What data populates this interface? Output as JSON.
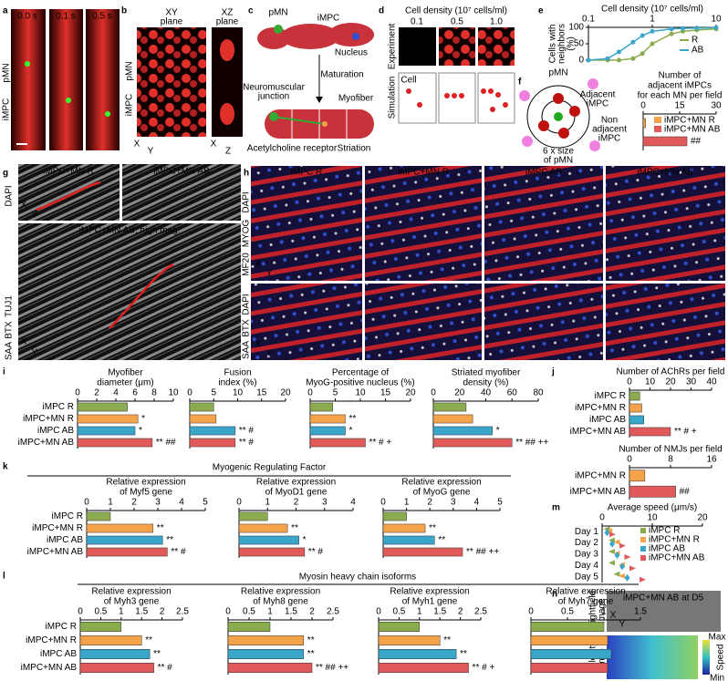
{
  "panels": {
    "letters": [
      "a",
      "b",
      "c",
      "d",
      "e",
      "f",
      "g",
      "h",
      "i",
      "j",
      "k",
      "l",
      "m",
      "n"
    ],
    "a": {
      "times": [
        "0.0 s",
        "0.1 s",
        "0.5 s"
      ],
      "stain": [
        "iMPC",
        "pMN"
      ]
    },
    "b": {
      "views": [
        [
          "XY",
          "plane"
        ],
        [
          "XZ",
          "plane"
        ]
      ],
      "stain": [
        "iMPC",
        "pMN"
      ],
      "axes": [
        "X",
        "Y",
        "X",
        "Z"
      ]
    },
    "c": {
      "labels": [
        "pMN",
        "iMPC",
        "Nucleus",
        "Maturation",
        "Neuromuscular",
        "junction",
        "Myofiber",
        "Acetylcholine receptor",
        "Striation"
      ]
    },
    "d": {
      "title": "Cell density (10⁷ cells/ml)",
      "densities": [
        "0.1",
        "0.5",
        "1.0"
      ],
      "rows": [
        "Experiment",
        "Simulation"
      ],
      "cell": [
        "Cell",
        "Cell"
      ]
    },
    "f": {
      "labels": [
        "pMN",
        "Adjacent",
        "iMPC",
        "Non",
        "adjacent",
        "iMPC",
        "6 x size",
        "of pMN"
      ]
    },
    "g": {
      "titles": [
        "iMPC+MN R",
        "iMPC+MN AB",
        "iMPC+MN AB, high mag."
      ],
      "stain": [
        "SAA",
        "BTX",
        "TUJ1",
        "DAPI"
      ],
      "axes": [
        "X",
        "Y",
        "X",
        "Y"
      ]
    },
    "h": {
      "titles": [
        "iMPC R",
        "iMPC+MN R",
        "iMPC AB",
        "iMPC+MN AB"
      ],
      "stain_top": [
        "MF20",
        "MYOG",
        "DAPI"
      ],
      "stain_bottom": [
        "SAA",
        "BTX",
        "DAPI"
      ],
      "axes": [
        "X",
        "Y",
        "X",
        "Y"
      ]
    },
    "n": {
      "title": "iMPC+MN AB at D5",
      "labels": [
        "Brightfield",
        "image",
        "Velocity",
        "map"
      ],
      "scale": [
        "Max",
        "Speed",
        "Min"
      ],
      "axes": [
        "X",
        "Y"
      ]
    }
  },
  "groups": [
    "Myogenic Regulating Factor",
    "Myosin heavy chain isoforms"
  ],
  "chart_data": [
    {
      "type": "line",
      "title": [
        "Cell density (10⁷ cells/ml)"
      ],
      "ylabel": [
        "Cells with",
        "neighbors",
        "(%)"
      ],
      "xscale": "log",
      "x": [
        0.1,
        0.2,
        0.3,
        0.5,
        0.7,
        1,
        2,
        3,
        5,
        10
      ],
      "series": [
        {
          "name": "R",
          "color": "#8aab4e",
          "values": [
            0,
            0,
            0,
            5,
            20,
            50,
            80,
            88,
            92,
            95
          ]
        },
        {
          "name": "AB",
          "color": "#3aa6c9",
          "values": [
            0,
            5,
            25,
            55,
            75,
            88,
            95,
            97,
            98,
            99
          ]
        }
      ],
      "xlim": [
        0.1,
        10
      ],
      "xticks": [
        0.1,
        1,
        10
      ],
      "ylim": [
        0,
        100
      ],
      "yticks": [
        0,
        50,
        100
      ]
    },
    {
      "type": "bar",
      "legend": true,
      "title": [
        "Number of",
        "adjacent iMPCs",
        "for each MN per field"
      ],
      "categories": [
        "iMPC+MN R",
        "iMPC+MN AB"
      ],
      "values": [
        1,
        18
      ],
      "colors": [
        "#f5a34a",
        "#e05a5a"
      ],
      "xlim": [
        0,
        30
      ],
      "xticks": [
        0,
        15,
        30
      ],
      "sig": [
        null,
        "##"
      ]
    },
    {
      "type": "bar",
      "title": [
        "Myofiber",
        "diameter (μm)"
      ],
      "categories": [
        "iMPC R",
        "iMPC+MN R",
        "iMPC AB",
        "iMPC+MN AB"
      ],
      "values": [
        5.2,
        6.3,
        6.0,
        7.8
      ],
      "colors": [
        "#8aab4e",
        "#f5a34a",
        "#3aa6c9",
        "#e05a5a"
      ],
      "xlim": [
        0,
        10
      ],
      "xticks": [
        0,
        2,
        4,
        6,
        8,
        10
      ],
      "sig": [
        null,
        "*",
        "*",
        "** ##"
      ]
    },
    {
      "type": "bar",
      "title": [
        "Fusion",
        "index (%)"
      ],
      "values": [
        5,
        5.5,
        9.5,
        9.5
      ],
      "colors": [
        "#8aab4e",
        "#f5a34a",
        "#3aa6c9",
        "#e05a5a"
      ],
      "xlim": [
        0,
        20
      ],
      "xticks": [
        0,
        5,
        10,
        15,
        20
      ],
      "sig": [
        null,
        null,
        "** #",
        "** #"
      ]
    },
    {
      "type": "bar",
      "title": [
        "Percentage of",
        "MyoG-positive nucleus (%)"
      ],
      "values": [
        4.5,
        7,
        7,
        11
      ],
      "colors": [
        "#8aab4e",
        "#f5a34a",
        "#3aa6c9",
        "#e05a5a"
      ],
      "xlim": [
        0,
        20
      ],
      "xticks": [
        0,
        5,
        10,
        15,
        20
      ],
      "sig": [
        null,
        "**",
        "*",
        "** # +"
      ]
    },
    {
      "type": "bar",
      "title": [
        "Striated myofiber",
        "density (%)"
      ],
      "values": [
        25,
        30,
        45,
        60
      ],
      "colors": [
        "#8aab4e",
        "#f5a34a",
        "#3aa6c9",
        "#e05a5a"
      ],
      "xlim": [
        0,
        80
      ],
      "xticks": [
        0,
        20,
        40,
        60,
        80
      ],
      "sig": [
        null,
        null,
        "*",
        "** ## ++"
      ]
    },
    {
      "type": "bar",
      "title": [
        "Number of AChRs per field"
      ],
      "categories": [
        "iMPC R",
        "iMPC+MN R",
        "iMPC AB",
        "iMPC+MN AB"
      ],
      "values": [
        5,
        6,
        7,
        20
      ],
      "colors": [
        "#8aab4e",
        "#f5a34a",
        "#3aa6c9",
        "#e05a5a"
      ],
      "xlim": [
        0,
        40
      ],
      "xticks": [
        0,
        10,
        20,
        30,
        40
      ],
      "sig": [
        null,
        null,
        null,
        "** # +"
      ]
    },
    {
      "type": "bar",
      "title": [
        "Number of NMJs per field"
      ],
      "categories": [
        "iMPC+MN R",
        "iMPC+MN AB"
      ],
      "values": [
        3,
        9
      ],
      "colors": [
        "#f5a34a",
        "#e05a5a"
      ],
      "xlim": [
        0,
        16
      ],
      "xticks": [
        0,
        8,
        16
      ],
      "sig": [
        null,
        "##"
      ]
    },
    {
      "type": "bar",
      "title": [
        "Relative expression",
        "of Myf5 gene"
      ],
      "categories": [
        "iMPC R",
        "iMPC+MN R",
        "iMPC AB",
        "iMPC+MN AB"
      ],
      "values": [
        1,
        2.8,
        3.2,
        3.4
      ],
      "colors": [
        "#8aab4e",
        "#f5a34a",
        "#3aa6c9",
        "#e05a5a"
      ],
      "xlim": [
        0,
        5
      ],
      "xticks": [
        0,
        1,
        2,
        3,
        4,
        5
      ],
      "sig": [
        null,
        "**",
        "**",
        "** #"
      ]
    },
    {
      "type": "bar",
      "title": [
        "Relative expression",
        "of MyoD1 gene"
      ],
      "values": [
        1,
        1.7,
        2.1,
        2.3
      ],
      "colors": [
        "#8aab4e",
        "#f5a34a",
        "#3aa6c9",
        "#e05a5a"
      ],
      "xlim": [
        0,
        4
      ],
      "xticks": [
        0,
        1,
        2,
        3,
        4
      ],
      "sig": [
        null,
        "**",
        "*",
        "** #"
      ]
    },
    {
      "type": "bar",
      "title": [
        "Relative expression",
        "of MyoG gene"
      ],
      "values": [
        1,
        1.8,
        2.2,
        3.4
      ],
      "colors": [
        "#8aab4e",
        "#f5a34a",
        "#3aa6c9",
        "#e05a5a"
      ],
      "xlim": [
        0,
        5
      ],
      "xticks": [
        0,
        1,
        2,
        3,
        4,
        5
      ],
      "sig": [
        null,
        "**",
        "**",
        "** ## ++"
      ]
    },
    {
      "type": "bar",
      "title": [
        "Relative expression",
        "of Myh3 gene"
      ],
      "categories": [
        "iMPC R",
        "iMPC+MN R",
        "iMPC AB",
        "iMPC+MN AB"
      ],
      "values": [
        1,
        1.5,
        1.7,
        1.8
      ],
      "colors": [
        "#8aab4e",
        "#f5a34a",
        "#3aa6c9",
        "#e05a5a"
      ],
      "xlim": [
        0,
        2.5
      ],
      "xticks": [
        0,
        0.5,
        1,
        1.5,
        2,
        2.5
      ],
      "sig": [
        null,
        "**",
        "**",
        "** #"
      ]
    },
    {
      "type": "bar",
      "title": [
        "Relative expression",
        "of Myh8 gene"
      ],
      "values": [
        1,
        1.8,
        1.8,
        2.0
      ],
      "colors": [
        "#8aab4e",
        "#f5a34a",
        "#3aa6c9",
        "#e05a5a"
      ],
      "xlim": [
        0,
        2.5
      ],
      "xticks": [
        0,
        0.5,
        1,
        1.5,
        2,
        2.5
      ],
      "sig": [
        null,
        "**",
        "**",
        "** ## ++"
      ]
    },
    {
      "type": "bar",
      "title": [
        "Relative expression",
        "of Myh1 gene"
      ],
      "values": [
        1,
        1.5,
        1.9,
        2.2
      ],
      "colors": [
        "#8aab4e",
        "#f5a34a",
        "#3aa6c9",
        "#e05a5a"
      ],
      "xlim": [
        0,
        2.5
      ],
      "xticks": [
        0,
        0.5,
        1,
        1.5,
        2,
        2.5
      ],
      "sig": [
        null,
        "**",
        "**",
        "** # +"
      ]
    },
    {
      "type": "bar",
      "title": [
        "Relative expression",
        "of Myh7 gene"
      ],
      "values": [
        1,
        1.05,
        1.1,
        1.05
      ],
      "colors": [
        "#8aab4e",
        "#f5a34a",
        "#3aa6c9",
        "#e05a5a"
      ],
      "xlim": [
        0,
        1.5
      ],
      "xticks": [
        0,
        0.5,
        1,
        1.5
      ],
      "sig": [
        null,
        null,
        null,
        null
      ]
    },
    {
      "type": "dot",
      "title": [
        "Average speed (μm/s)"
      ],
      "categories": [
        "Day 1",
        "Day 2",
        "Day 3",
        "Day 4",
        "Day 5"
      ],
      "series": [
        {
          "name": "iMPC R",
          "color": "#8aab4e",
          "values": [
            1,
            2,
            2,
            2,
            3
          ]
        },
        {
          "name": "iMPC+MN R",
          "color": "#f5a34a",
          "values": [
            1.5,
            3,
            3,
            4,
            4
          ]
        },
        {
          "name": "iMPC AB",
          "color": "#3aa6c9",
          "values": [
            1,
            2,
            3,
            4,
            5
          ]
        },
        {
          "name": "iMPC+MN AB",
          "color": "#e05a5a",
          "values": [
            2,
            4,
            5,
            6,
            8
          ]
        }
      ],
      "xlim": [
        0,
        20
      ],
      "xticks": [
        0,
        10,
        20
      ]
    }
  ]
}
